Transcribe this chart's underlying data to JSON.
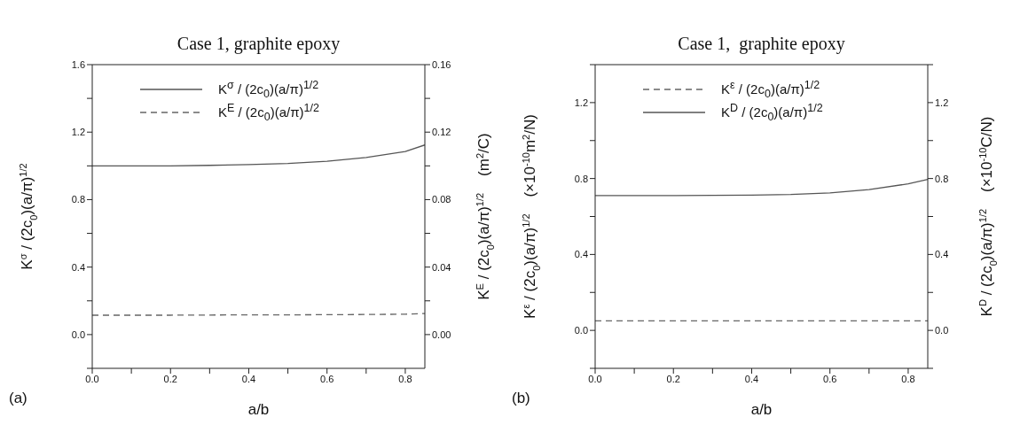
{
  "chart_data": [
    {
      "type": "line",
      "title": "Case 1, graphite epoxy",
      "xlabel": "a/b",
      "ylabel": "K$^{σ}$ / (2c$_{0}$)(a/π)$^{1/2}$",
      "y2label": "K$^{E}$ / (2c$_{0}$)(a/π)$^{1/2}$    (m$^{2}$/C)",
      "x": [
        0,
        0.1,
        0.2,
        0.3,
        0.4,
        0.5,
        0.6,
        0.7,
        0.8,
        0.85
      ],
      "series": [
        {
          "name": "K$^{σ}$ / (2c$_{0}$)(a/π)$^{1/2}$",
          "color": "#555555",
          "line_style": "solid",
          "values": [
            1.0,
            1.0,
            1.0,
            1.003,
            1.008,
            1.014,
            1.027,
            1.05,
            1.085,
            1.124
          ]
        },
        {
          "name": "K$^{E}$ / (2c$_{0}$)(a/π)$^{1/2}$",
          "color": "#666666",
          "line_style": "dashed",
          "axis": "y2",
          "values": [
            0.0115,
            0.0115,
            0.0115,
            0.0116,
            0.0117,
            0.0117,
            0.0118,
            0.0119,
            0.0121,
            0.0125
          ]
        }
      ],
      "xlim": [
        0,
        0.85
      ],
      "xticks": [
        {
          "value": 0,
          "label": "0.0"
        },
        {
          "value": 0.1,
          "label": null
        },
        0.2,
        {
          "value": 0.3,
          "label": null
        },
        0.4,
        {
          "value": 0.5,
          "label": null
        },
        0.6,
        {
          "value": 0.7,
          "label": null
        },
        0.8
      ],
      "ylim": [
        -0.2,
        1.6
      ],
      "yticks": [
        {
          "value": -0.2,
          "label": null
        },
        {
          "value": 0,
          "label": "0.0"
        },
        {
          "value": 0.2,
          "label": null
        },
        0.4,
        {
          "value": 0.6,
          "label": null
        },
        0.8,
        {
          "value": 1.0,
          "label": null
        },
        1.2,
        {
          "value": 1.4,
          "label": null
        },
        1.6
      ],
      "y2lim": [
        -0.02,
        0.16
      ],
      "y2ticks": [
        {
          "value": 0,
          "label": "0.00"
        },
        {
          "value": 0.02,
          "label": null
        },
        0.04,
        {
          "value": 0.06,
          "label": null
        },
        0.08,
        {
          "value": 0.1,
          "label": null
        },
        0.12,
        {
          "value": 0.14,
          "label": null
        },
        0.16
      ],
      "legend": "top",
      "grid": false,
      "annotations": [
        "(a)"
      ]
    },
    {
      "type": "line",
      "title": "Case 1,  graphite epoxy",
      "xlabel": "a/b",
      "ylabel": "K$^{ε}$ / (2c$_{0}$)(a/π)$^{1/2}$    (×10$^{-10}$m$^{2}$/N)",
      "y2label": "K$^{D}$ / (2c$_{0}$)(a/π)$^{1/2}$    (×10$^{-10}$C/N)",
      "x": [
        0,
        0.1,
        0.2,
        0.3,
        0.4,
        0.5,
        0.6,
        0.7,
        0.8,
        0.85
      ],
      "series": [
        {
          "name": "K$^{ε}$ / (2c$_{0}$)(a/π)$^{1/2}$",
          "color": "#666666",
          "line_style": "dashed",
          "values": [
            0.05,
            0.05,
            0.05,
            0.05,
            0.05,
            0.05,
            0.05,
            0.05,
            0.05,
            0.05
          ]
        },
        {
          "name": "K$^{D}$ / (2c$_{0}$)(a/π)$^{1/2}$",
          "color": "#555555",
          "line_style": "solid",
          "axis": "y2",
          "values": [
            0.71,
            0.71,
            0.71,
            0.711,
            0.713,
            0.716,
            0.724,
            0.742,
            0.772,
            0.795
          ]
        }
      ],
      "xlim": [
        0,
        0.85
      ],
      "xticks": [
        {
          "value": 0,
          "label": "0.0"
        },
        {
          "value": 0.1,
          "label": null
        },
        0.2,
        {
          "value": 0.3,
          "label": null
        },
        0.4,
        {
          "value": 0.5,
          "label": null
        },
        0.6,
        {
          "value": 0.7,
          "label": null
        },
        0.8
      ],
      "ylim": [
        -0.2,
        1.4
      ],
      "yticks": [
        {
          "value": -0.2,
          "label": null
        },
        {
          "value": 0,
          "label": "0.0"
        },
        {
          "value": 0.2,
          "label": null
        },
        0.4,
        {
          "value": 0.6,
          "label": null
        },
        0.8,
        {
          "value": 1.0,
          "label": null
        },
        1.2,
        {
          "value": 1.4,
          "label": null
        }
      ],
      "y2lim": [
        -0.2,
        1.4
      ],
      "y2ticks": [
        {
          "value": -0.2,
          "label": null
        },
        {
          "value": 0,
          "label": "0.0"
        },
        {
          "value": 0.2,
          "label": null
        },
        0.4,
        {
          "value": 0.6,
          "label": null
        },
        0.8,
        {
          "value": 1.0,
          "label": null
        },
        1.2,
        {
          "value": 1.4,
          "label": null
        }
      ],
      "legend": "top",
      "grid": false,
      "annotations": [
        "(b)"
      ]
    }
  ]
}
